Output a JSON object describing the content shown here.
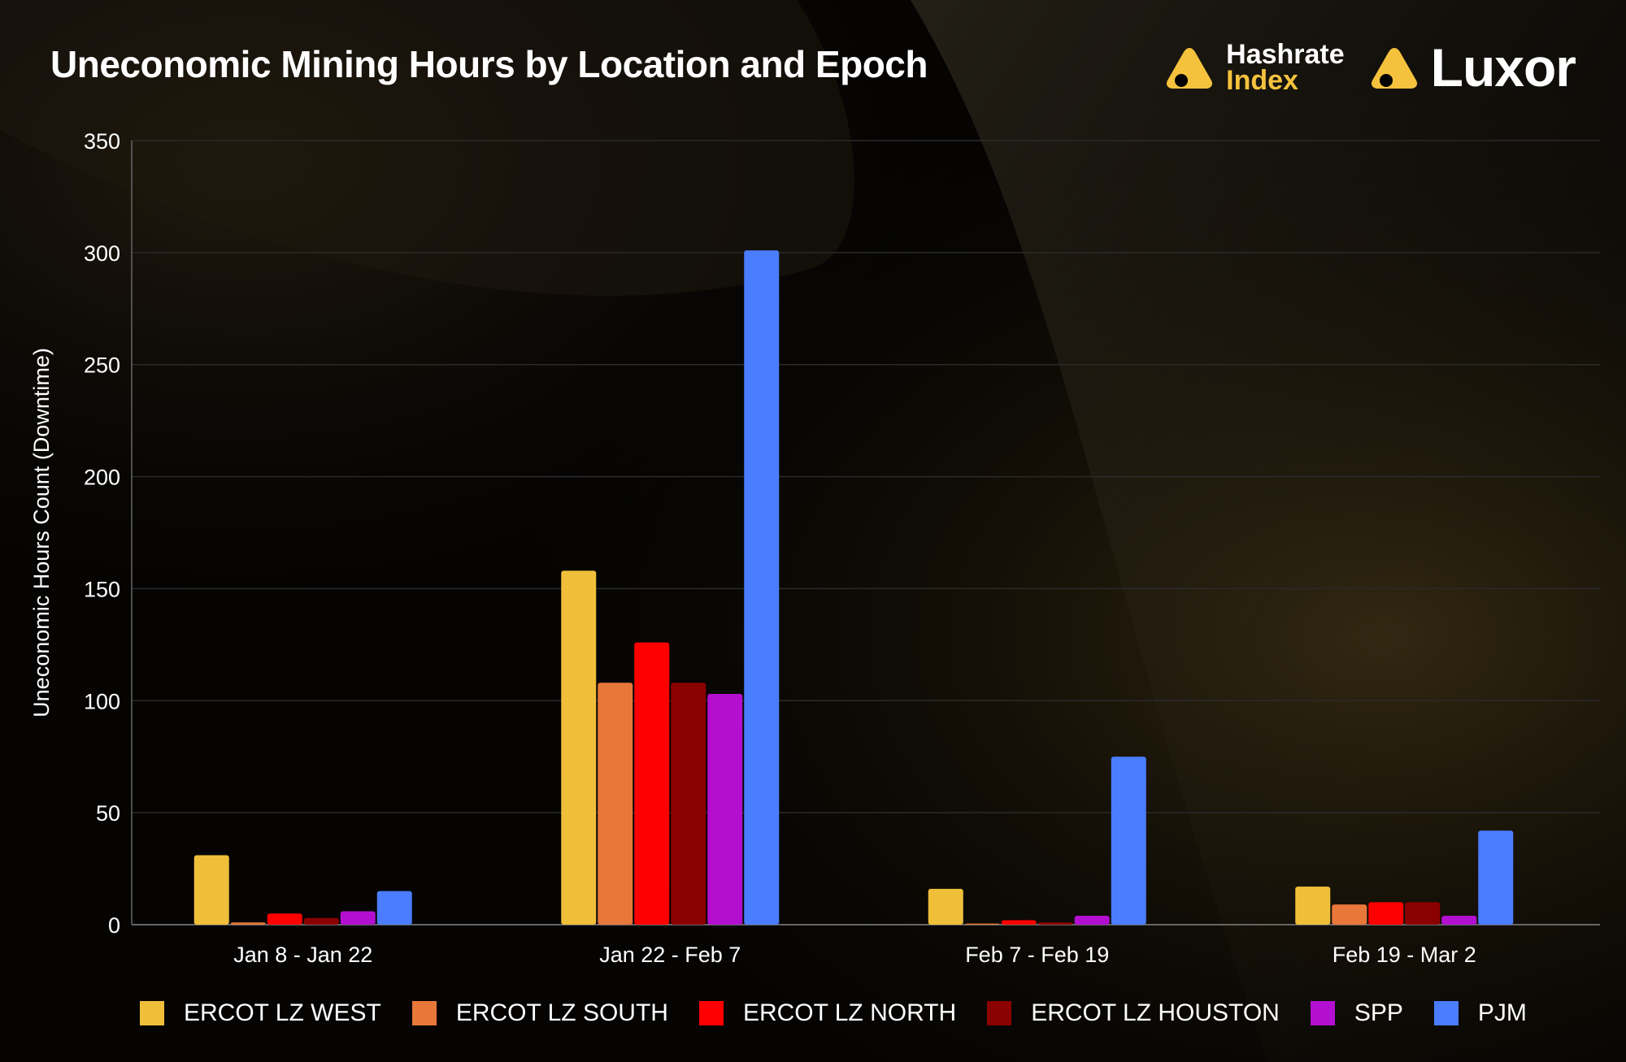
{
  "header": {
    "title": "Uneconomic Mining Hours by Location and Epoch",
    "logo_hashrate_line1": "Hashrate",
    "logo_hashrate_line2": "Index",
    "logo_luxor": "Luxor"
  },
  "colors": {
    "accent": "#f5c23e",
    "gridline": "#2a2a2a",
    "axis": "#666666"
  },
  "chart_data": {
    "type": "bar",
    "title": "Uneconomic Mining Hours by Location and Epoch",
    "xlabel": "",
    "ylabel": "Uneconomic Hours Count (Downtime)",
    "ylim": [
      0,
      350
    ],
    "yticks": [
      0,
      50,
      100,
      150,
      200,
      250,
      300,
      350
    ],
    "grid": true,
    "legend_position": "bottom",
    "categories": [
      "Jan 8 - Jan 22",
      "Jan 22 - Feb 7",
      "Feb 7 - Feb 19",
      "Feb 19 - Mar 2"
    ],
    "series": [
      {
        "name": "ERCOT LZ WEST",
        "color": "#f0bf3a",
        "values": [
          31,
          158,
          16,
          17
        ]
      },
      {
        "name": "ERCOT LZ SOUTH",
        "color": "#e8773a",
        "values": [
          1,
          108,
          0.5,
          9
        ]
      },
      {
        "name": "ERCOT LZ NORTH",
        "color": "#ff0000",
        "values": [
          5,
          126,
          2,
          10
        ]
      },
      {
        "name": "ERCOT LZ HOUSTON",
        "color": "#8b0000",
        "values": [
          3,
          108,
          1,
          10
        ]
      },
      {
        "name": "SPP",
        "color": "#b30fd0",
        "values": [
          6,
          103,
          4,
          4
        ]
      },
      {
        "name": "PJM",
        "color": "#4a7dff",
        "values": [
          15,
          301,
          75,
          42
        ]
      }
    ]
  }
}
